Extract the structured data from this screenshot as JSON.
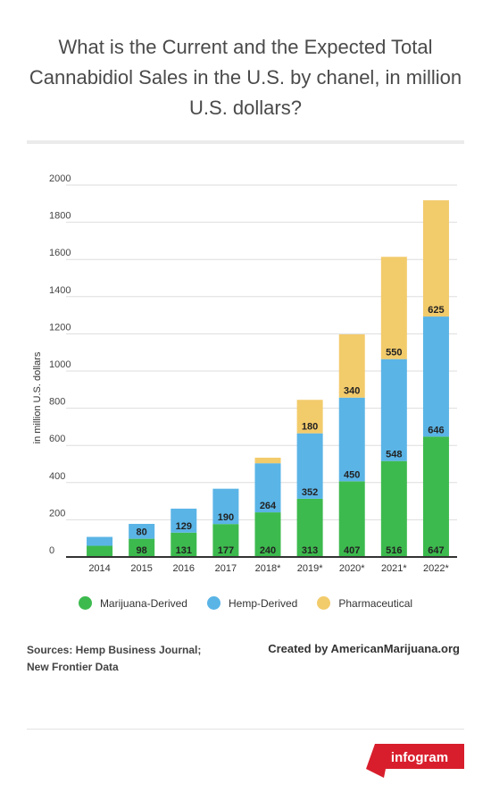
{
  "title": "What is the Current and the Expected Total Cannabidiol Sales in the U.S. by chanel, in million U.S. dollars?",
  "sources": {
    "line1": "Sources: Hemp Business Journal;",
    "line2": "New Frontier Data"
  },
  "credit": "Created by AmericanMarijuana.org",
  "brand": "infogram",
  "colors": {
    "marijuana": "#3dba4e",
    "hemp": "#5ab4e6",
    "pharma": "#f2cb6b",
    "brand": "#d81e2c",
    "grid": "#dddddd",
    "axis": "#333333"
  },
  "chart_data": {
    "type": "bar",
    "stacked": true,
    "categories": [
      "2014",
      "2015",
      "2016",
      "2017",
      "2018*",
      "2019*",
      "2020*",
      "2021*",
      "2022*"
    ],
    "series": [
      {
        "name": "Marijuana-Derived",
        "values": [
          60,
          98,
          131,
          177,
          240,
          313,
          407,
          516,
          647
        ],
        "labels": [
          "",
          "98",
          "131",
          "177",
          "240",
          "313",
          "407",
          "516",
          "647"
        ]
      },
      {
        "name": "Hemp-Derived",
        "values": [
          48,
          80,
          129,
          190,
          264,
          352,
          450,
          548,
          646
        ],
        "labels": [
          "",
          "80",
          "129",
          "190",
          "264",
          "352",
          "450",
          "548",
          "646"
        ]
      },
      {
        "name": "Pharmaceutical",
        "values": [
          0,
          0,
          0,
          0,
          30,
          180,
          340,
          550,
          625
        ],
        "labels": [
          "",
          "",
          "",
          "",
          "",
          "180",
          "340",
          "550",
          "625"
        ]
      }
    ],
    "yticks": [
      "0",
      "200",
      "400",
      "600",
      "800",
      "1000",
      "1200",
      "1400",
      "1600",
      "1800",
      "2000"
    ],
    "ylabel": "in million U.S. dollars",
    "xlabel": "",
    "ylim": [
      0,
      2000
    ],
    "grid": true,
    "legend_position": "bottom"
  }
}
